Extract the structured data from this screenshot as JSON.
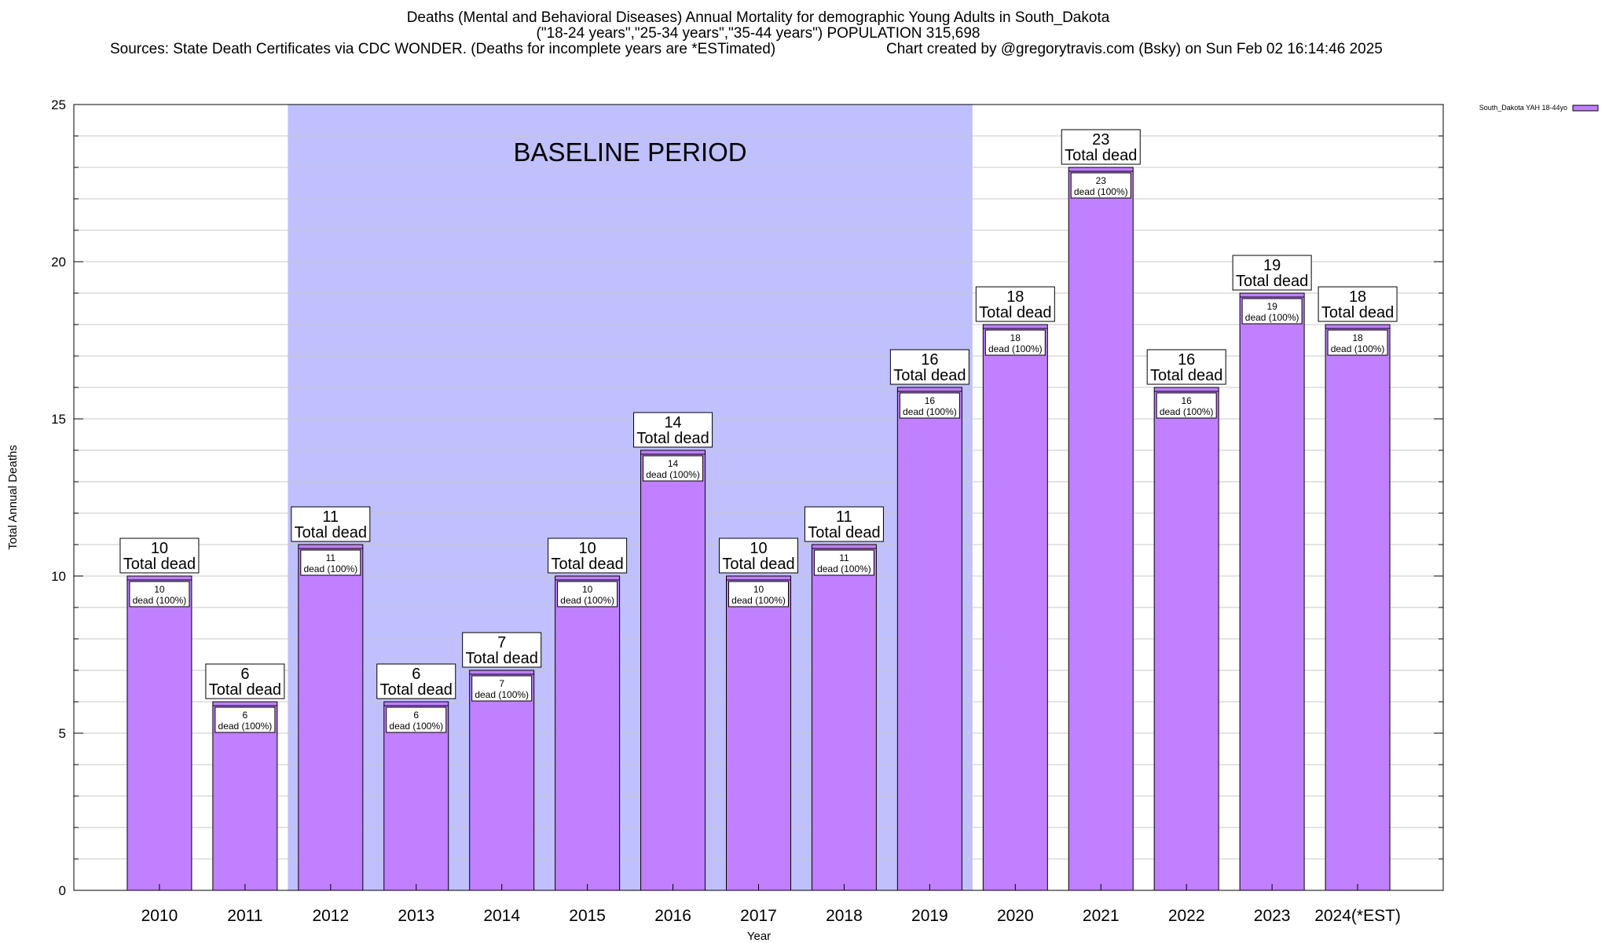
{
  "chart_data": {
    "type": "bar",
    "title_lines": [
      "Deaths (Mental and Behavioral Diseases) Annual Mortality for demographic Young Adults in South_Dakota",
      "(\"18-24 years\",\"25-34 years\",\"35-44 years\") POPULATION 315,698",
      "Sources: State Death Certificates via CDC WONDER. (Deaths for incomplete years are *ESTimated)",
      "Chart created by @gregorytravis.com (Bsky) on Sun Feb 02 16:14:46 2025"
    ],
    "xlabel": "Year",
    "ylabel": "Total Annual Deaths",
    "ylim": [
      0,
      25
    ],
    "yticks": [
      0,
      5,
      10,
      15,
      20,
      25
    ],
    "grid": true,
    "legend": {
      "position": "top-right",
      "entries": [
        "South_Dakota YAH 18-44yo"
      ]
    },
    "categories": [
      "2010",
      "2011",
      "2012",
      "2013",
      "2014",
      "2015",
      "2016",
      "2017",
      "2018",
      "2019",
      "2020",
      "2021",
      "2022",
      "2023",
      "2024(*EST)"
    ],
    "series": [
      {
        "name": "South_Dakota YAH 18-44yo",
        "values": [
          10,
          6,
          11,
          6,
          7,
          10,
          14,
          10,
          11,
          16,
          18,
          23,
          16,
          19,
          18
        ]
      }
    ],
    "annotation": {
      "text": "BASELINE PERIOD",
      "from": "2012",
      "to": "2019"
    },
    "total_label": "Total dead",
    "inner_label": "dead (100%)",
    "colors": {
      "bar": "#c080ff",
      "baseline_band": "#c0c0ff",
      "grid": "#c8c8c8"
    }
  }
}
